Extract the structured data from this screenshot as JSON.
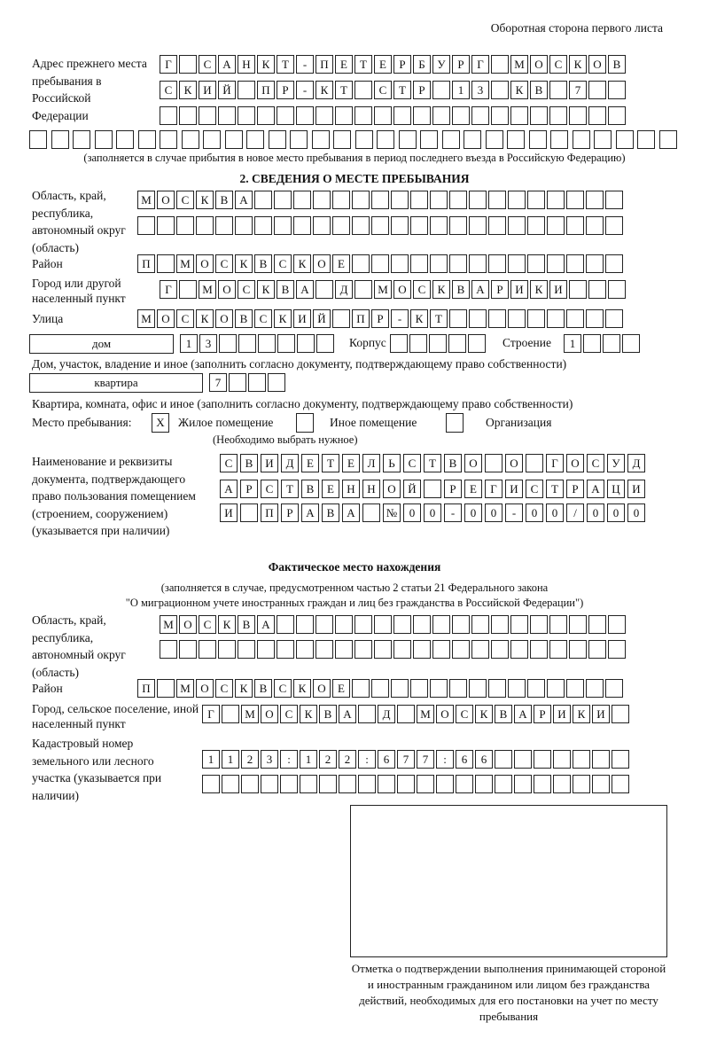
{
  "header": "Оборотная сторона первого листа",
  "prev_address": {
    "label": "Адрес прежнего места пребывания в Российской Федерации",
    "rows": [
      [
        "Г",
        "",
        "С",
        "А",
        "Н",
        "К",
        "Т",
        "-",
        "П",
        "Е",
        "Т",
        "Е",
        "Р",
        "Б",
        "У",
        "Р",
        "Г",
        "",
        "М",
        "О",
        "С",
        "К",
        "О",
        "В"
      ],
      [
        "С",
        "К",
        "И",
        "Й",
        "",
        "П",
        "Р",
        "-",
        "К",
        "Т",
        "",
        "С",
        "Т",
        "Р",
        "",
        "1",
        "3",
        "",
        "К",
        "В",
        "",
        "7",
        "",
        ""
      ],
      [
        "",
        "",
        "",
        "",
        "",
        "",
        "",
        "",
        "",
        "",
        "",
        "",
        "",
        "",
        "",
        "",
        "",
        "",
        "",
        "",
        "",
        "",
        "",
        ""
      ],
      [
        "",
        "",
        "",
        "",
        "",
        "",
        "",
        "",
        "",
        "",
        "",
        "",
        "",
        "",
        "",
        "",
        "",
        "",
        "",
        "",
        "",
        "",
        "",
        "",
        "",
        "",
        "",
        "",
        "",
        ""
      ]
    ],
    "note": "(заполняется в случае прибытия в новое место пребывания в период последнего въезда в Российскую Федерацию)"
  },
  "section2": {
    "title": "2. СВЕДЕНИЯ О МЕСТЕ ПРЕБЫВАНИЯ",
    "region_label": "Область, край, республика, автономный округ (область)",
    "region_rows": [
      [
        "М",
        "О",
        "С",
        "К",
        "В",
        "А",
        "",
        "",
        "",
        "",
        "",
        "",
        "",
        "",
        "",
        "",
        "",
        "",
        "",
        "",
        "",
        "",
        "",
        "",
        ""
      ],
      [
        "",
        "",
        "",
        "",
        "",
        "",
        "",
        "",
        "",
        "",
        "",
        "",
        "",
        "",
        "",
        "",
        "",
        "",
        "",
        "",
        "",
        "",
        "",
        "",
        ""
      ]
    ],
    "district_label": "Район",
    "district_row": [
      "П",
      "",
      "М",
      "О",
      "С",
      "К",
      "В",
      "С",
      "К",
      "О",
      "Е",
      "",
      "",
      "",
      "",
      "",
      "",
      "",
      "",
      "",
      "",
      "",
      "",
      "",
      ""
    ],
    "city_label": "Город или другой населенный пункт",
    "city_row": [
      "Г",
      "",
      "М",
      "О",
      "С",
      "К",
      "В",
      "А",
      "",
      "Д",
      "",
      "М",
      "О",
      "С",
      "К",
      "В",
      "А",
      "Р",
      "И",
      "К",
      "И",
      "",
      "",
      ""
    ],
    "street_label": "Улица",
    "street_row": [
      "М",
      "О",
      "С",
      "К",
      "О",
      "В",
      "С",
      "К",
      "И",
      "Й",
      "",
      "П",
      "Р",
      "-",
      "К",
      "Т",
      "",
      "",
      "",
      "",
      "",
      "",
      "",
      "",
      ""
    ],
    "house_type": "дом",
    "house_row": [
      "1",
      "3",
      "",
      "",
      "",
      "",
      "",
      ""
    ],
    "korpus_label": "Корпус",
    "korpus_row": [
      "",
      "",
      "",
      "",
      ""
    ],
    "building_label": "Строение",
    "building_row": [
      "1",
      "",
      "",
      ""
    ],
    "house_note": "Дом, участок, владение и иное (заполнить согласно документу, подтверждающему право собственности)",
    "flat_type": "квартира",
    "flat_row": [
      "7",
      "",
      "",
      ""
    ],
    "flat_note": "Квартира, комната, офис и иное (заполнить согласно документу, подтверждающему право собственности)",
    "place_label": "Место пребывания:",
    "place_options": [
      {
        "label": "Жилое помещение",
        "mark": "X"
      },
      {
        "label": "Иное помещение",
        "mark": ""
      },
      {
        "label": "Организация",
        "mark": ""
      }
    ],
    "place_note": "(Необходимо выбрать нужное)",
    "doc_label": "Наименование и реквизиты документа, подтверждающего право пользования помещением (строением, сооружением) (указывается при наличии)",
    "doc_rows": [
      [
        "С",
        "В",
        "И",
        "Д",
        "Е",
        "Т",
        "Е",
        "Л",
        "Ь",
        "С",
        "Т",
        "В",
        "О",
        "",
        "О",
        "",
        "Г",
        "О",
        "С",
        "У",
        "Д"
      ],
      [
        "А",
        "Р",
        "С",
        "Т",
        "В",
        "Е",
        "Н",
        "Н",
        "О",
        "Й",
        "",
        "Р",
        "Е",
        "Г",
        "И",
        "С",
        "Т",
        "Р",
        "А",
        "Ц",
        "И"
      ],
      [
        "И",
        "",
        "П",
        "Р",
        "А",
        "В",
        "А",
        "",
        "№",
        "0",
        "0",
        "-",
        "0",
        "0",
        "-",
        "0",
        "0",
        "/",
        "0",
        "0",
        "0"
      ]
    ]
  },
  "actual": {
    "title": "Фактическое место нахождения",
    "note1": "(заполняется в случае, предусмотренном частью 2 статьи 21 Федерального закона",
    "note2": "\"О миграционном учете иностранных граждан и лиц без гражданства в Российской Федерации\")",
    "region_label": "Область, край, республика, автономный округ (область)",
    "region_rows": [
      [
        "М",
        "О",
        "С",
        "К",
        "В",
        "А",
        "",
        "",
        "",
        "",
        "",
        "",
        "",
        "",
        "",
        "",
        "",
        "",
        "",
        "",
        "",
        "",
        "",
        ""
      ],
      [
        "",
        "",
        "",
        "",
        "",
        "",
        "",
        "",
        "",
        "",
        "",
        "",
        "",
        "",
        "",
        "",
        "",
        "",
        "",
        "",
        "",
        "",
        "",
        ""
      ]
    ],
    "district_label": "Район",
    "district_row": [
      "П",
      "",
      "М",
      "О",
      "С",
      "К",
      "В",
      "С",
      "К",
      "О",
      "Е",
      "",
      "",
      "",
      "",
      "",
      "",
      "",
      "",
      "",
      "",
      "",
      "",
      "",
      ""
    ],
    "city_label": "Город, сельское поселение, иной населенный пункт",
    "city_row": [
      "Г",
      "",
      "М",
      "О",
      "С",
      "К",
      "В",
      "А",
      "",
      "Д",
      "",
      "М",
      "О",
      "С",
      "К",
      "В",
      "А",
      "Р",
      "И",
      "К",
      "И",
      ""
    ],
    "cadastre_label": "Кадастровый номер земельного или лесного участка (указывается при наличии)",
    "cadastre_rows": [
      [
        "1",
        "1",
        "2",
        "3",
        ":",
        "1",
        "2",
        "2",
        ":",
        "6",
        "7",
        "7",
        ":",
        "6",
        "6",
        "",
        "",
        "",
        "",
        "",
        "",
        ""
      ],
      [
        "",
        "",
        "",
        "",
        "",
        "",
        "",
        "",
        "",
        "",
        "",
        "",
        "",
        "",
        "",
        "",
        "",
        "",
        "",
        "",
        "",
        ""
      ]
    ]
  },
  "stamp_caption": "Отметка о подтверждении выполнения принимающей стороной и иностранным гражданином или лицом без гражданства действий, необходимых для его постановки на учет по месту пребывания"
}
